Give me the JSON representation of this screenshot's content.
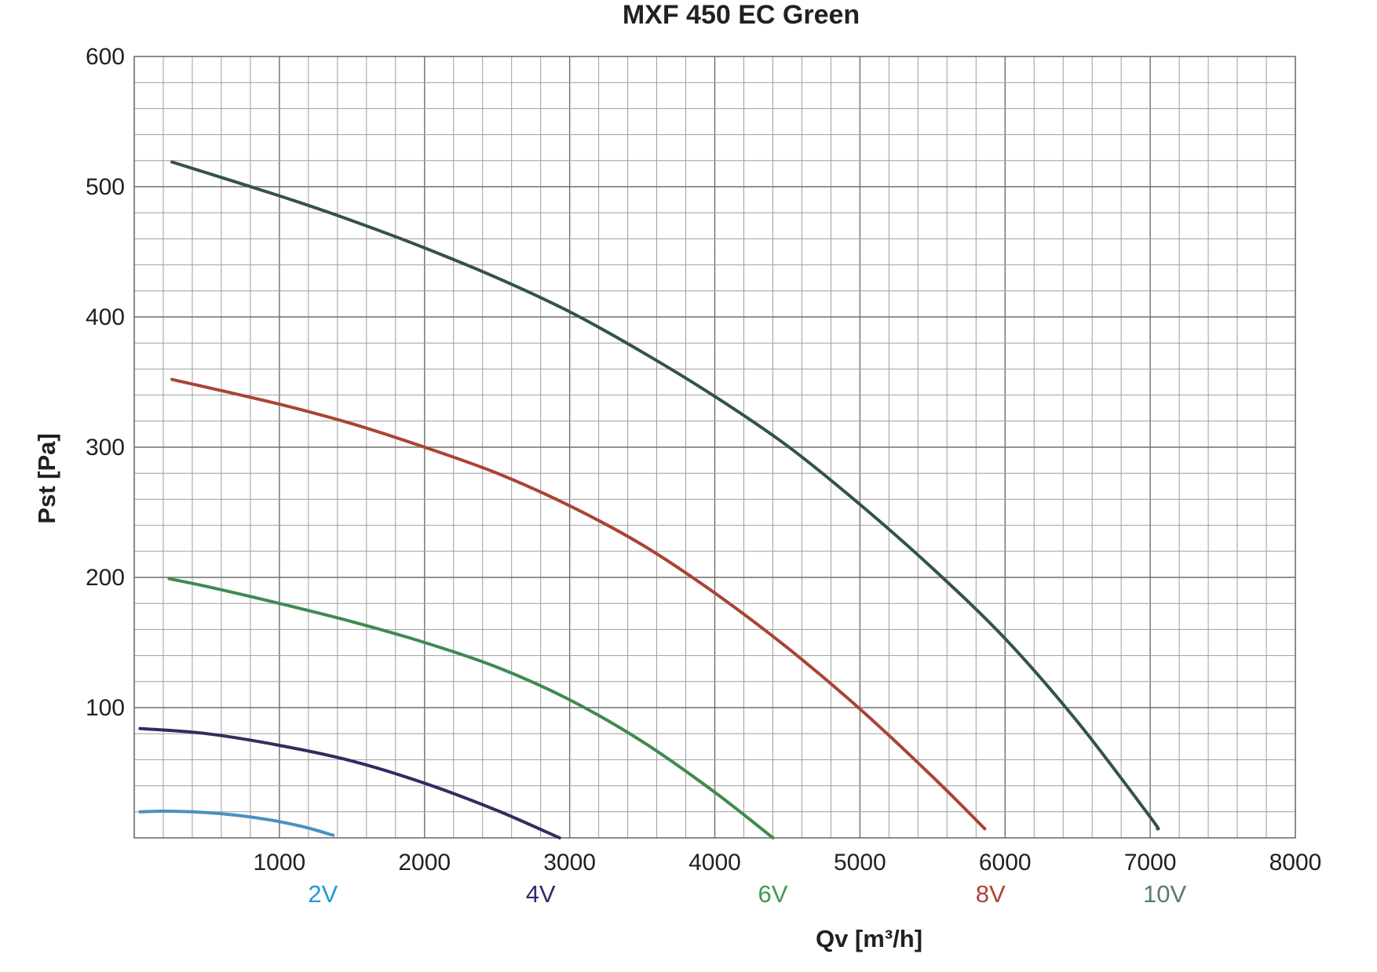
{
  "chart_data": {
    "type": "line",
    "title": "MXF 450 EC Green",
    "xlabel": "Qv [m³/h]",
    "ylabel": "Pst [Pa]",
    "xlim": [
      0,
      8000
    ],
    "ylim": [
      0,
      600
    ],
    "x_ticks": [
      1000,
      2000,
      3000,
      4000,
      5000,
      6000,
      7000,
      8000
    ],
    "y_ticks": [
      100,
      200,
      300,
      400,
      500,
      600
    ],
    "x_minor_step": 200,
    "y_minor_step": 20,
    "grid": true,
    "legend": "below x-axis labels",
    "series": [
      {
        "name": "2V",
        "color": "#4a90c0",
        "label_color": "#1f9ad6",
        "label_x": 1300,
        "x": [
          40,
          200,
          400,
          600,
          800,
          1000,
          1200,
          1370
        ],
        "y": [
          20,
          20.5,
          20,
          18.5,
          16,
          12.5,
          7.5,
          2
        ]
      },
      {
        "name": "4V",
        "color": "#2e2e5e",
        "label_color": "#2e2e6e",
        "label_x": 2800,
        "x": [
          40,
          500,
          1000,
          1500,
          2000,
          2500,
          2930
        ],
        "y": [
          84,
          80,
          71,
          59,
          42,
          21,
          0
        ]
      },
      {
        "name": "6V",
        "color": "#3f8a4f",
        "label_color": "#3f9a50",
        "label_x": 4400,
        "x": [
          240,
          500,
          1000,
          1500,
          2000,
          2500,
          3000,
          3500,
          4000,
          4400
        ],
        "y": [
          199,
          193,
          180,
          166,
          150,
          131,
          106,
          74,
          35,
          0
        ]
      },
      {
        "name": "8V",
        "color": "#a94434",
        "label_color": "#b04434",
        "label_x": 5900,
        "x": [
          260,
          1000,
          1500,
          2000,
          2500,
          3000,
          3500,
          4000,
          4500,
          5000,
          5500,
          5860
        ],
        "y": [
          352,
          333,
          318,
          300,
          280,
          255,
          225,
          188,
          146,
          99,
          47,
          7
        ]
      },
      {
        "name": "10V",
        "color": "#34524d",
        "label_color": "#5a7a72",
        "label_x": 7100,
        "x": [
          260,
          1000,
          1500,
          2000,
          2500,
          3000,
          3500,
          4000,
          4500,
          5000,
          5500,
          6000,
          6500,
          7000,
          7050
        ],
        "y": [
          519,
          493,
          474,
          453,
          430,
          404,
          373,
          339,
          301,
          256,
          207,
          153,
          89,
          16,
          7
        ]
      }
    ]
  }
}
